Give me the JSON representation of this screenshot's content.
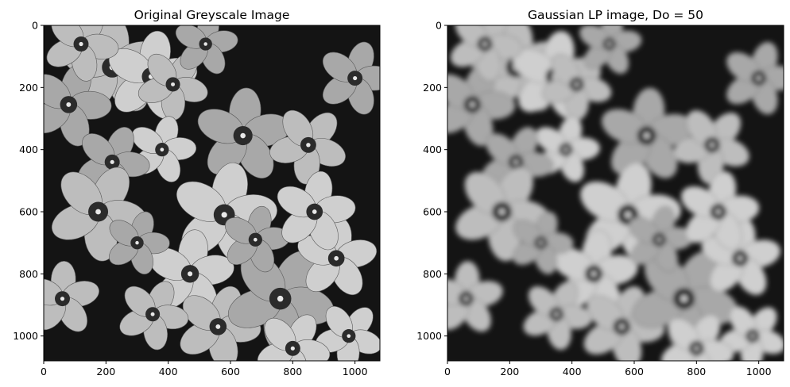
{
  "chart_data": [
    {
      "type": "heatmap",
      "title": "Original Greyscale Image",
      "colormap": "gray",
      "xlim": [
        0,
        1080
      ],
      "ylim": [
        1080,
        0
      ],
      "xticks": [
        0,
        200,
        400,
        600,
        800,
        1000
      ],
      "yticks": [
        0,
        200,
        400,
        600,
        800,
        1000
      ],
      "grid": false
    },
    {
      "type": "heatmap",
      "title": "Gaussian LP image, Do = 50",
      "colormap": "gray",
      "xlim": [
        0,
        1080
      ],
      "ylim": [
        1080,
        0
      ],
      "xticks": [
        0,
        200,
        400,
        600,
        800,
        1000
      ],
      "yticks": [
        0,
        200,
        400,
        600,
        800,
        1000
      ],
      "grid": false
    }
  ]
}
